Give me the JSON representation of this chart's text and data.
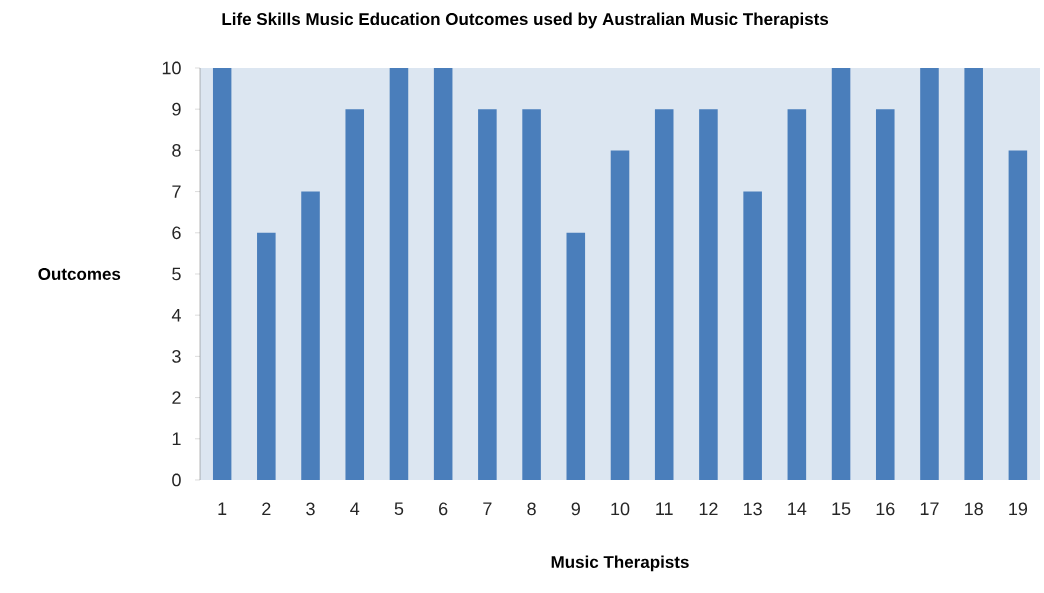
{
  "chart_data": {
    "type": "bar",
    "title": "Life Skills Music Education Outcomes used by Australian Music Therapists",
    "xlabel": "Music Therapists",
    "ylabel": "Outcomes",
    "categories": [
      "1",
      "2",
      "3",
      "4",
      "5",
      "6",
      "7",
      "8",
      "9",
      "10",
      "11",
      "12",
      "13",
      "14",
      "15",
      "16",
      "17",
      "18",
      "19"
    ],
    "values": [
      10,
      6,
      7,
      9,
      10,
      10,
      9,
      9,
      6,
      8,
      9,
      9,
      7,
      9,
      10,
      9,
      10,
      10,
      8
    ],
    "color": "#4a7ebb",
    "ylim": [
      0,
      10
    ],
    "yticks": [
      0,
      1,
      2,
      3,
      4,
      5,
      6,
      7,
      8,
      9,
      10
    ],
    "grid": false
  }
}
